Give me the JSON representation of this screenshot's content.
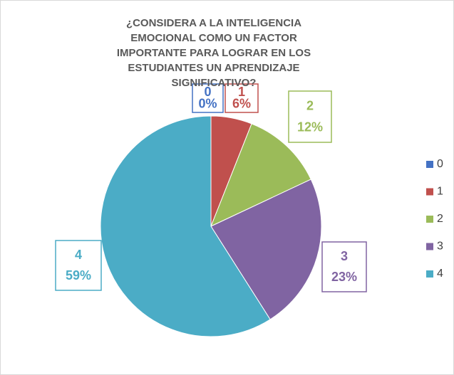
{
  "chart_data": {
    "type": "pie",
    "title": "¿CONSIDERA A LA INTELIGENCIA EMOCIONAL COMO UN FACTOR IMPORTANTE PARA LOGRAR EN LOS ESTUDIANTES UN APRENDIZAJE SIGNIFICATIVO?",
    "categories": [
      "0",
      "1",
      "2",
      "3",
      "4"
    ],
    "values": [
      0,
      6,
      12,
      23,
      59
    ],
    "value_labels": [
      "0%",
      "6%",
      "12%",
      "23%",
      "59%"
    ],
    "colors": [
      "#4472c4",
      "#c0504d",
      "#9bbb59",
      "#8064a2",
      "#4bacc6"
    ],
    "legend": "right"
  }
}
